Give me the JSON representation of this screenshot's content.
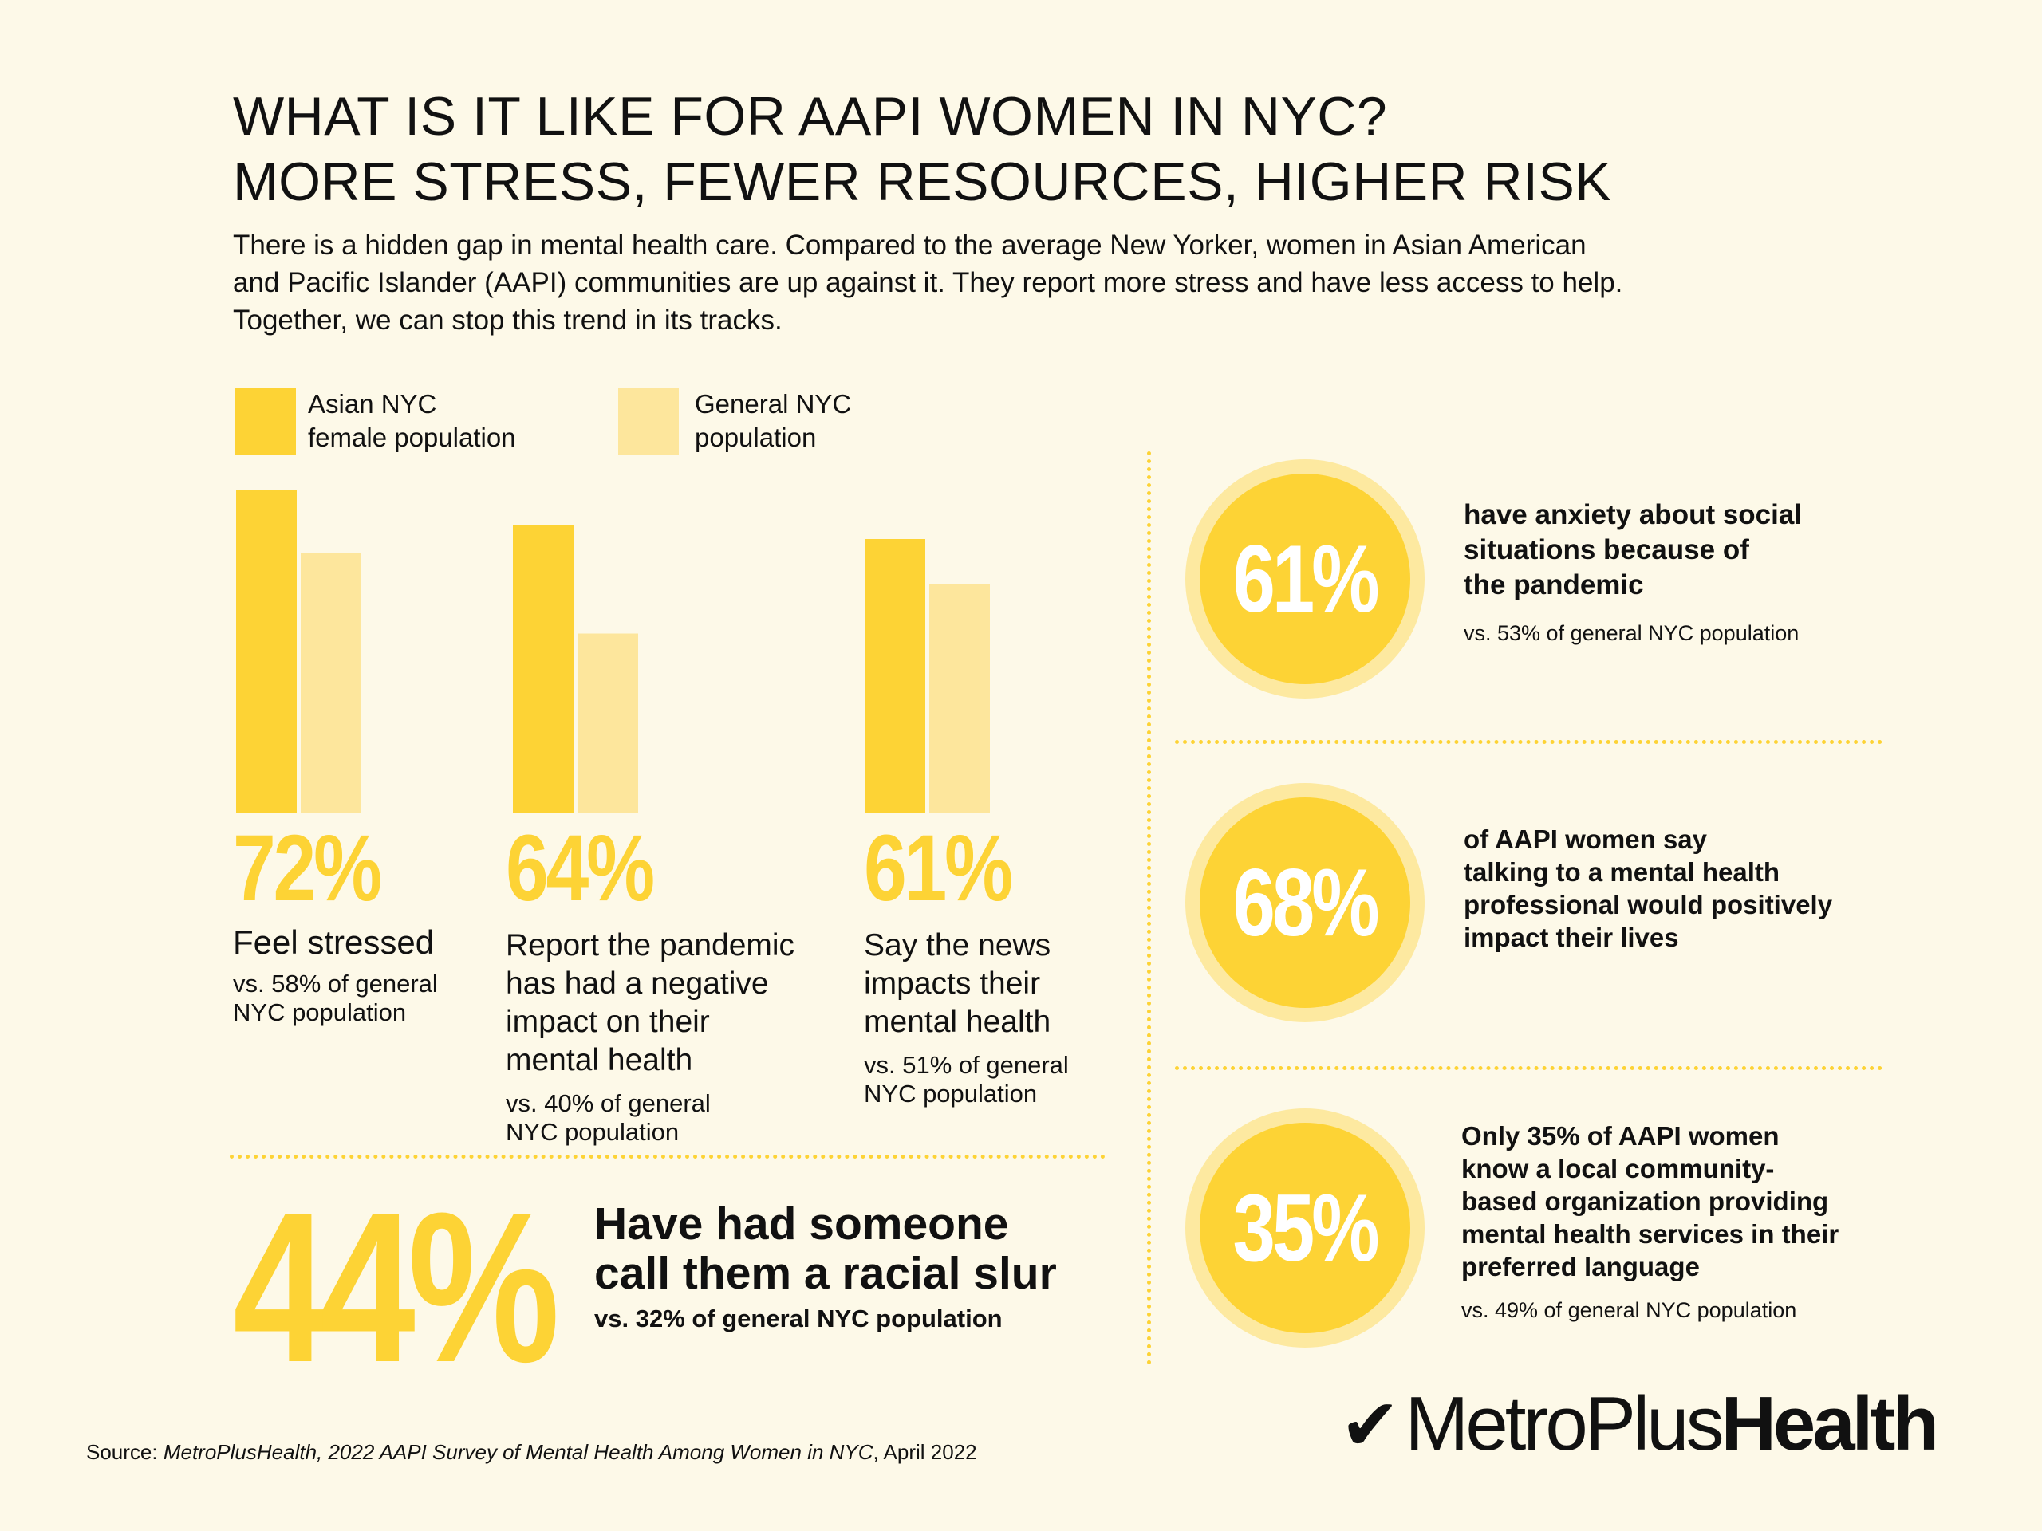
{
  "title": {
    "line1": "WHAT IS IT LIKE FOR AAPI WOMEN IN NYC?",
    "line2": "MORE STRESS, FEWER RESOURCES, HIGHER RISK"
  },
  "intro": {
    "line1": "There is a hidden gap in mental health care. Compared to the average New Yorker, women in Asian American",
    "line2": "and Pacific Islander (AAPI) communities are up against it. They report more stress and have less access to help.",
    "line3": "Together, we can stop this trend in its tracks."
  },
  "legend": {
    "asian_line1": "Asian NYC",
    "asian_line2": "female population",
    "general_line1": "General NYC",
    "general_line2": "population"
  },
  "colors": {
    "asian": "#fdd335",
    "general": "#fde69c",
    "background": "#fdf9e8",
    "circle_halo": "#fde9a0"
  },
  "chart_data": {
    "type": "bar",
    "categories": [
      "Feel stressed",
      "Report the pandemic has had a negative impact on their mental health",
      "Say the news impacts their mental health"
    ],
    "series": [
      {
        "name": "Asian NYC female population",
        "values": [
          72,
          64,
          61
        ]
      },
      {
        "name": "General NYC population",
        "values": [
          58,
          40,
          51
        ]
      }
    ],
    "ylim": [
      0,
      72
    ],
    "legend_position": "top-left",
    "grid": false
  },
  "bars": [
    {
      "pct": "72%",
      "label": [
        "Feel stressed"
      ],
      "sub": [
        "vs. 58% of general",
        "NYC population"
      ]
    },
    {
      "pct": "64%",
      "label": [
        "Report the pandemic",
        "has had a negative",
        "impact on their",
        "mental health"
      ],
      "sub": [
        "vs. 40% of general",
        "NYC population"
      ]
    },
    {
      "pct": "61%",
      "label": [
        "Say the news",
        "impacts their",
        "mental health"
      ],
      "sub": [
        "vs. 51% of general",
        "NYC population"
      ]
    }
  ],
  "slur": {
    "pct": "44%",
    "line1": "Have had someone",
    "line2": "call them a racial slur",
    "sub": "vs. 32% of general NYC population"
  },
  "circles": [
    {
      "pct": "61%",
      "text": [
        "have anxiety about social",
        "situations because of",
        "the pandemic"
      ],
      "sub": "vs. 53% of general NYC population"
    },
    {
      "pct": "68%",
      "text": [
        "of AAPI women say",
        "talking to a mental health",
        "professional would positively",
        "impact their lives"
      ],
      "sub": ""
    },
    {
      "pct": "35%",
      "text": [
        "Only 35% of AAPI women",
        "know a local community-",
        "based organization providing",
        "mental health services in their",
        "preferred language"
      ],
      "sub": "vs. 49% of general NYC population"
    }
  ],
  "source": {
    "prefix": "Source: ",
    "italic": "MetroPlusHealth, 2022 AAPI Survey of Mental Health Among Women in NYC",
    "suffix": ", April 2022"
  },
  "logo": {
    "check": "✔",
    "light": "MetroPlus",
    "bold": "Health"
  }
}
